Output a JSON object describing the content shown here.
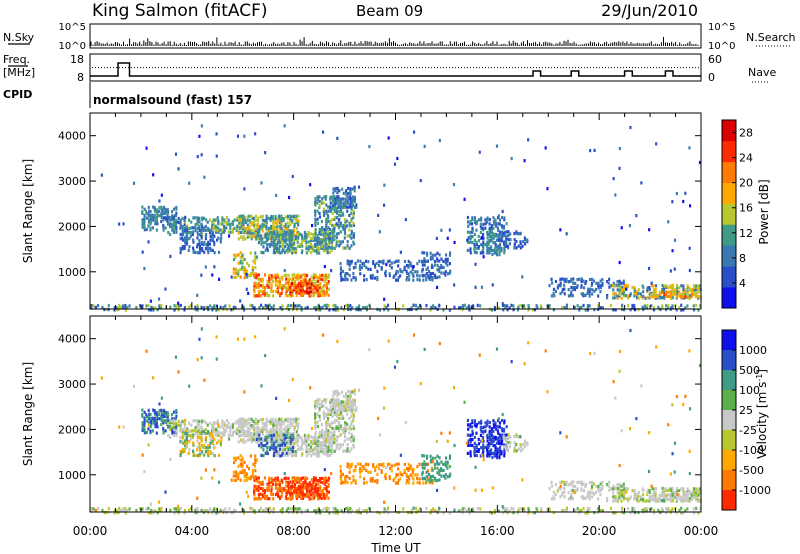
{
  "header": {
    "station": "King Salmon (fitACF)",
    "beam": "Beam 09",
    "date": "29/Jun/2010"
  },
  "strip_labels": {
    "nsky": "N.Sky",
    "nsearch": "N.Search",
    "freq": "Freq.",
    "mhz": "[MHz]",
    "nave": "Nave",
    "cpid": "CPID",
    "nsky_ticks": [
      "10^5",
      "10^0"
    ],
    "nsearch_ticks": [
      "10^5",
      "10^0"
    ],
    "freq_ticks": [
      "18",
      "8"
    ],
    "nave_ticks": [
      "60",
      "0"
    ]
  },
  "cpid_text": "normalsound (fast) 157",
  "colors": {
    "scale": [
      "#1010ee",
      "#2a4ec8",
      "#3a7ab0",
      "#3f9a86",
      "#5cb04a",
      "#b8c82e",
      "#ffa800",
      "#ff7a00",
      "#ff2a00",
      "#d80000"
    ],
    "grey": "#c8c8c8"
  },
  "chart_data": [
    {
      "type": "heatmap",
      "title": "Power",
      "ylabel": "Slant Range [km]",
      "xlabel": "Time UT",
      "ylim": [
        180,
        4500
      ],
      "xlim": [
        0,
        24
      ],
      "yticks": [
        "1000",
        "2000",
        "3000",
        "4000"
      ],
      "xticks": [
        "00:00",
        "04:00",
        "08:00",
        "12:00",
        "16:00",
        "20:00",
        "00:00"
      ],
      "colorbar_label": "Power [dB]",
      "colorbar_ticks": [
        "4",
        "8",
        "12",
        "16",
        "20",
        "24",
        "28"
      ],
      "colorbar_range": [
        0,
        30
      ]
    },
    {
      "type": "heatmap",
      "title": "Velocity",
      "ylabel": "Slant Range [km]",
      "xlabel": "Time UT",
      "ylim": [
        180,
        4500
      ],
      "xlim": [
        0,
        24
      ],
      "yticks": [
        "1000",
        "2000",
        "3000",
        "4000"
      ],
      "xticks": [
        "00:00",
        "04:00",
        "08:00",
        "12:00",
        "16:00",
        "20:00",
        "00:00"
      ],
      "colorbar_label": "Velocity [m s",
      "colorbar_label_sup": "-1",
      "colorbar_label_end": "]",
      "colorbar_ticks": [
        "1000",
        "500",
        "100",
        "25",
        "-25",
        "-100",
        "-500",
        "-1000"
      ]
    }
  ],
  "freq_series": {
    "x": [
      0,
      1.1,
      1.1,
      1.55,
      1.55,
      17.4,
      17.4,
      17.7,
      17.7,
      18.9,
      18.9,
      19.2,
      19.2,
      21.0,
      21.0,
      21.3,
      21.3,
      22.6,
      22.6,
      22.9,
      22.9,
      24
    ],
    "y": [
      10.5,
      10.5,
      17,
      17,
      10.5,
      10.5,
      13,
      13,
      10.5,
      10.5,
      13,
      13,
      10.5,
      10.5,
      13,
      13,
      10.5,
      10.5,
      13,
      13,
      10.5,
      10.5
    ]
  },
  "nave_level": 40,
  "echo_regions": [
    {
      "t": [
        2.0,
        3.4
      ],
      "r": [
        1950,
        2500
      ],
      "p": [
        6,
        12
      ],
      "v": [
        30,
        600
      ],
      "d": 0.55
    },
    {
      "t": [
        3.0,
        4.8
      ],
      "r": [
        1850,
        2250
      ],
      "p": [
        6,
        14
      ],
      "v": [
        -40,
        40
      ],
      "d": 0.45
    },
    {
      "t": [
        3.5,
        5.2
      ],
      "r": [
        1450,
        2050
      ],
      "p": [
        4,
        10
      ],
      "v": [
        -150,
        80
      ],
      "d": 0.35
    },
    {
      "t": [
        4.8,
        6.2
      ],
      "r": [
        1900,
        2250
      ],
      "p": [
        8,
        16
      ],
      "v": [
        -30,
        30
      ],
      "d": 0.55
    },
    {
      "t": [
        5.8,
        8.2
      ],
      "r": [
        1750,
        2300
      ],
      "p": [
        8,
        18
      ],
      "v": [
        -30,
        30
      ],
      "d": 0.65
    },
    {
      "t": [
        7.2,
        9.5
      ],
      "r": [
        1450,
        1950
      ],
      "p": [
        8,
        16
      ],
      "v": [
        -30,
        30
      ],
      "d": 0.6
    },
    {
      "t": [
        8.8,
        10.4
      ],
      "r": [
        1550,
        2700
      ],
      "p": [
        6,
        14
      ],
      "v": [
        -30,
        40
      ],
      "d": 0.45
    },
    {
      "t": [
        9.5,
        10.5
      ],
      "r": [
        2450,
        2900
      ],
      "p": [
        4,
        12
      ],
      "v": [
        -30,
        30
      ],
      "d": 0.5
    },
    {
      "t": [
        6.5,
        8.0
      ],
      "r": [
        1450,
        1950
      ],
      "p": [
        8,
        14
      ],
      "v": [
        100,
        600
      ],
      "d": 0.25
    },
    {
      "t": [
        5.6,
        6.6
      ],
      "r": [
        900,
        1500
      ],
      "p": [
        12,
        22
      ],
      "v": [
        -600,
        -100
      ],
      "d": 0.35
    },
    {
      "t": [
        6.4,
        9.4
      ],
      "r": [
        500,
        1000
      ],
      "p": [
        14,
        26
      ],
      "v": [
        -1100,
        -400
      ],
      "d": 0.6
    },
    {
      "t": [
        7.8,
        9.0
      ],
      "r": [
        580,
        800
      ],
      "p": [
        20,
        29
      ],
      "v": [
        -1100,
        -600
      ],
      "d": 0.6
    },
    {
      "t": [
        9.8,
        13.5
      ],
      "r": [
        850,
        1300
      ],
      "p": [
        4,
        10
      ],
      "v": [
        -600,
        -100
      ],
      "d": 0.3
    },
    {
      "t": [
        13.0,
        14.2
      ],
      "r": [
        900,
        1500
      ],
      "p": [
        4,
        10
      ],
      "v": [
        40,
        150
      ],
      "d": 0.35
    },
    {
      "t": [
        14.8,
        16.4
      ],
      "r": [
        1450,
        2250
      ],
      "p": [
        4,
        12
      ],
      "v": [
        300,
        1100
      ],
      "d": 0.45
    },
    {
      "t": [
        15.6,
        16.2
      ],
      "r": [
        1400,
        1900
      ],
      "p": [
        6,
        14
      ],
      "v": [
        400,
        1100
      ],
      "d": 0.5
    },
    {
      "t": [
        16.2,
        17.2
      ],
      "r": [
        1550,
        1950
      ],
      "p": [
        4,
        8
      ],
      "v": [
        -30,
        30
      ],
      "d": 0.3
    },
    {
      "t": [
        18.0,
        21.0
      ],
      "r": [
        500,
        900
      ],
      "p": [
        4,
        10
      ],
      "v": [
        -30,
        30
      ],
      "d": 0.35
    },
    {
      "t": [
        20.5,
        24.0
      ],
      "r": [
        450,
        750
      ],
      "p": [
        6,
        20
      ],
      "v": [
        -40,
        40
      ],
      "d": 0.55
    },
    {
      "t": [
        22.0,
        24.0
      ],
      "r": [
        480,
        620
      ],
      "p": [
        14,
        24
      ],
      "v": [
        -30,
        30
      ],
      "d": 0.6
    },
    {
      "t": [
        0.0,
        24.0
      ],
      "r": [
        190,
        330
      ],
      "p": [
        4,
        16
      ],
      "v": [
        -60,
        60
      ],
      "d": 0.35
    },
    {
      "t": [
        0.0,
        24.0
      ],
      "r": [
        150,
        4300
      ],
      "p": [
        2,
        8
      ],
      "v": [
        -400,
        400
      ],
      "d": 0.006
    }
  ]
}
